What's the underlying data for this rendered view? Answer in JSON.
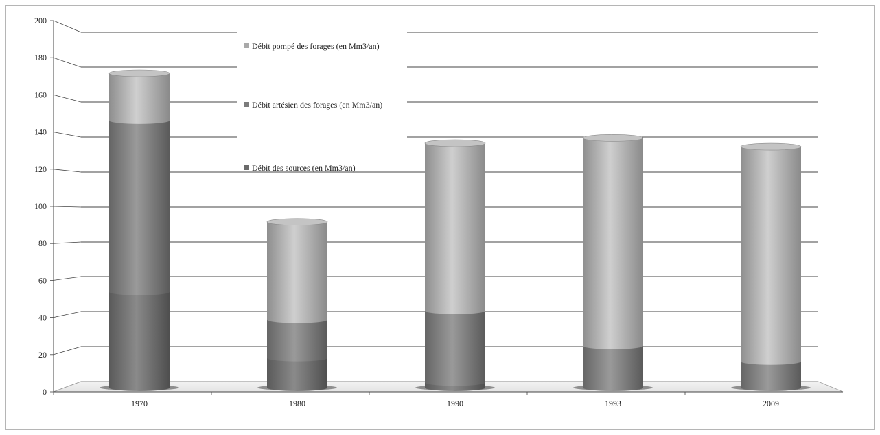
{
  "chart_data": {
    "type": "bar",
    "stacked": true,
    "style": "3d-cylinder",
    "categories": [
      "1970",
      "1980",
      "1990",
      "1993",
      "2009"
    ],
    "series": [
      {
        "name": "Débit des sources (en Mm3/an)",
        "values": [
          55,
          17,
          3,
          0,
          0
        ],
        "color": "#6a6a6a"
      },
      {
        "name": "Débit artésien des forages (en Mm3/an)",
        "values": [
          98,
          22,
          41,
          24,
          15
        ],
        "color": "#7c7c7c"
      },
      {
        "name": "Débit pompé des forages (en Mm3/an)",
        "values": [
          27,
          56,
          96,
          119,
          123
        ],
        "color": "#a9a9a9"
      }
    ],
    "legend": {
      "position": "top-center",
      "order": [
        2,
        1,
        0
      ]
    },
    "y_ticks": [
      "0",
      "20",
      "40",
      "60",
      "80",
      "100",
      "120",
      "140",
      "160",
      "180",
      "200"
    ],
    "ylim": [
      0,
      200
    ],
    "grid": true
  }
}
